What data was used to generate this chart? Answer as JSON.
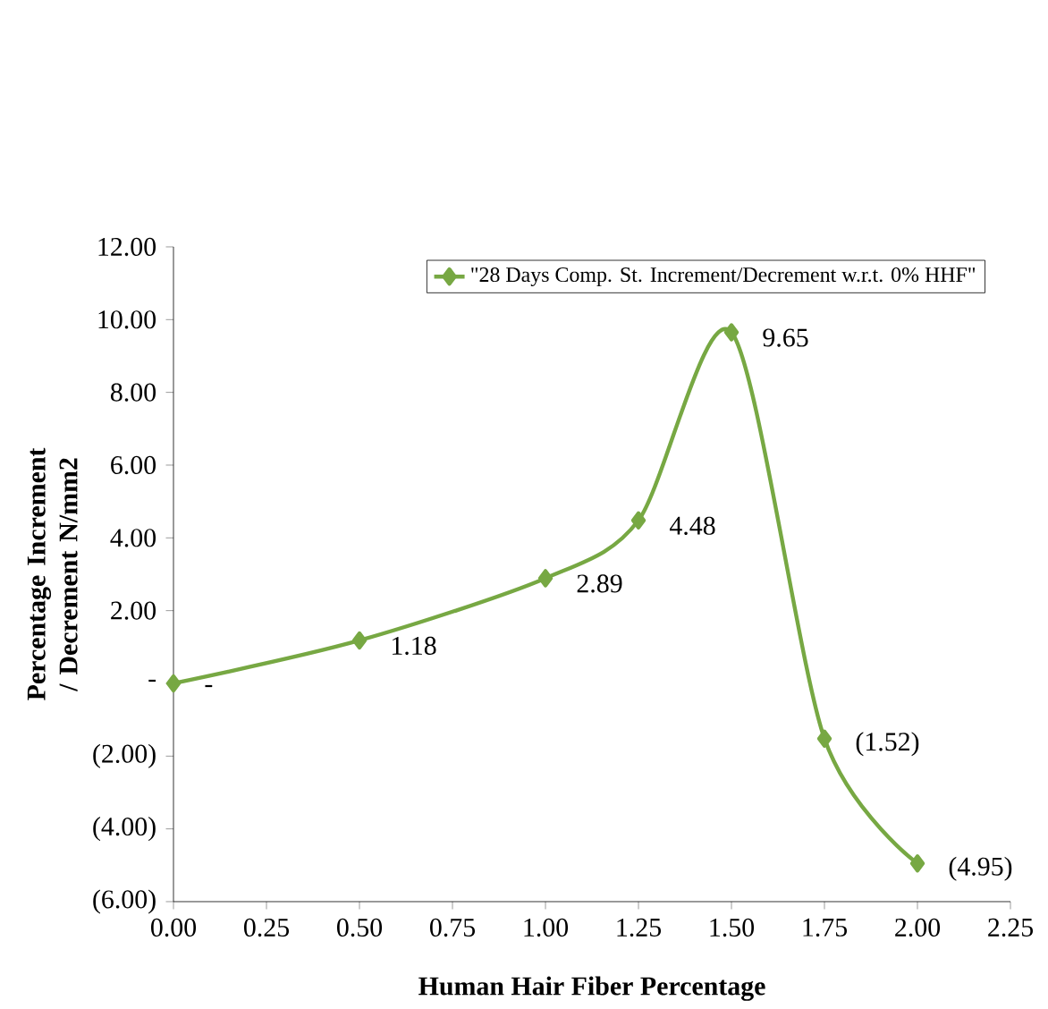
{
  "chart_data": {
    "type": "line",
    "xlabel": "Human Hair Fiber Percentage",
    "ylabel": "Percentage Increment / Decrement N/mm2",
    "x": [
      0,
      0.5,
      1,
      1.25,
      1.5,
      1.75,
      2
    ],
    "series": [
      {
        "name": "\"28 Days Comp. St. Increment/Decrement w.r.t. 0% HHF\"",
        "color": "#77a843",
        "values": [
          0,
          1.18,
          2.89,
          4.48,
          9.65,
          -1.52,
          -4.95
        ],
        "value_labels": [
          "-",
          "1.18",
          "2.89",
          "4.48",
          "9.65",
          "(1.52)",
          "(4.95)"
        ]
      }
    ],
    "xlim": [
      0,
      2.25
    ],
    "ylim": [
      -6,
      12
    ],
    "xticks": [
      {
        "value": 0,
        "label": "0.00"
      },
      {
        "value": 0.25,
        "label": "0.25"
      },
      {
        "value": 0.5,
        "label": "0.50"
      },
      {
        "value": 0.75,
        "label": "0.75"
      },
      {
        "value": 1,
        "label": "1.00"
      },
      {
        "value": 1.25,
        "label": "1.25"
      },
      {
        "value": 1.5,
        "label": "1.50"
      },
      {
        "value": 1.75,
        "label": "1.75"
      },
      {
        "value": 2,
        "label": "2.00"
      },
      {
        "value": 2.25,
        "label": "2.25"
      }
    ],
    "yticks": [
      {
        "value": -6,
        "label": "(6.00)"
      },
      {
        "value": -4,
        "label": "(4.00)"
      },
      {
        "value": -2,
        "label": "(2.00)"
      },
      {
        "value": 0,
        "label": "-"
      },
      {
        "value": 2,
        "label": "2.00"
      },
      {
        "value": 4,
        "label": "4.00"
      },
      {
        "value": 6,
        "label": "6.00"
      },
      {
        "value": 8,
        "label": "8.00"
      },
      {
        "value": 10,
        "label": "10.00"
      },
      {
        "value": 12,
        "label": "12.00"
      }
    ],
    "legend": "top right",
    "marker": "diamond",
    "line_style": "solid",
    "grid": false
  }
}
